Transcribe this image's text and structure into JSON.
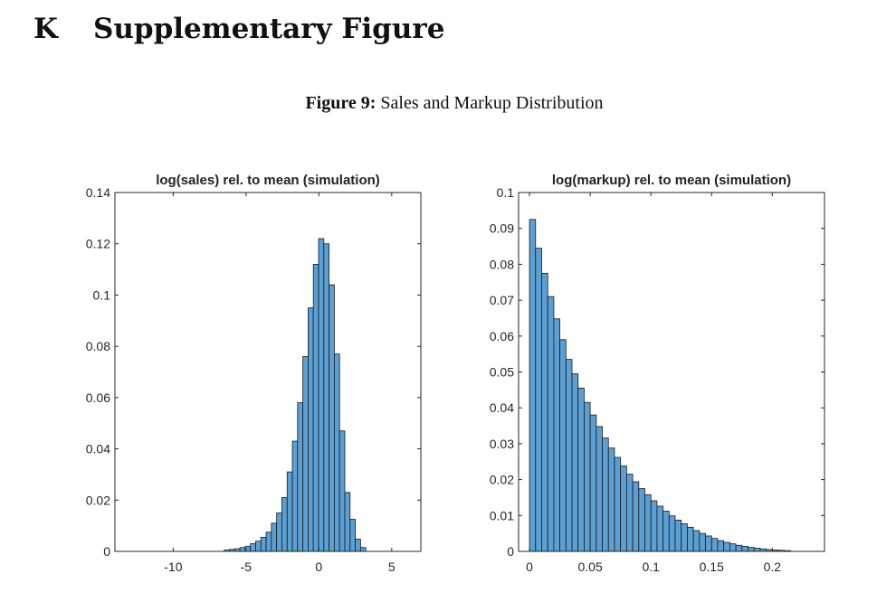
{
  "section": {
    "number": "K",
    "title": "Supplementary Figure"
  },
  "figure": {
    "label": "Figure 9:",
    "caption": "Sales and Markup Distribution"
  },
  "chart_data": [
    {
      "type": "bar",
      "title": "log(sales) rel. to mean (simulation)",
      "xlabel": "",
      "ylabel": "",
      "xlim": [
        -14,
        7
      ],
      "ylim": [
        0,
        0.14
      ],
      "xticks": [
        -10,
        -5,
        0,
        5
      ],
      "xtick_labels": [
        "-10",
        "-5",
        "0",
        "5"
      ],
      "yticks": [
        0,
        0.02,
        0.04,
        0.06,
        0.08,
        0.1,
        0.12,
        0.14
      ],
      "ytick_labels": [
        "0",
        "0.02",
        "0.04",
        "0.06",
        "0.08",
        "0.1",
        "0.12",
        "0.14"
      ],
      "bin_edges_start": -6.5,
      "bin_width": 0.36,
      "values": [
        0.0005,
        0.0008,
        0.001,
        0.0015,
        0.002,
        0.003,
        0.004,
        0.0055,
        0.0075,
        0.011,
        0.015,
        0.021,
        0.031,
        0.043,
        0.058,
        0.076,
        0.095,
        0.112,
        0.122,
        0.12,
        0.104,
        0.077,
        0.047,
        0.023,
        0.0125,
        0.0048,
        0.0015
      ],
      "bar_color": "#5b9fd3"
    },
    {
      "type": "bar",
      "title": "log(markup) rel. to mean (simulation)",
      "xlabel": "",
      "ylabel": "",
      "xlim": [
        -0.009,
        0.243
      ],
      "ylim": [
        0,
        0.1
      ],
      "xticks": [
        0,
        0.05,
        0.1,
        0.15,
        0.2
      ],
      "xtick_labels": [
        "0",
        "0.05",
        "0.1",
        "0.15",
        "0.2"
      ],
      "yticks": [
        0,
        0.01,
        0.02,
        0.03,
        0.04,
        0.05,
        0.06,
        0.07,
        0.08,
        0.09,
        0.1
      ],
      "ytick_labels": [
        "0",
        "0.01",
        "0.02",
        "0.03",
        "0.04",
        "0.05",
        "0.06",
        "0.07",
        "0.08",
        "0.09",
        "0.1"
      ],
      "bin_edges_start": 0,
      "bin_width": 0.005,
      "values": [
        0.0925,
        0.0845,
        0.0775,
        0.071,
        0.0648,
        0.059,
        0.0535,
        0.0495,
        0.0455,
        0.0415,
        0.038,
        0.0348,
        0.0316,
        0.0288,
        0.0262,
        0.0238,
        0.0215,
        0.0194,
        0.0175,
        0.0158,
        0.0141,
        0.0126,
        0.0112,
        0.0099,
        0.0087,
        0.0077,
        0.0067,
        0.0058,
        0.005,
        0.0043,
        0.0036,
        0.003,
        0.0025,
        0.0021,
        0.0017,
        0.0014,
        0.0011,
        0.0009,
        0.0007,
        0.0005,
        0.0004,
        0.0003,
        0.0002
      ],
      "bar_color": "#5b9fd3"
    }
  ]
}
